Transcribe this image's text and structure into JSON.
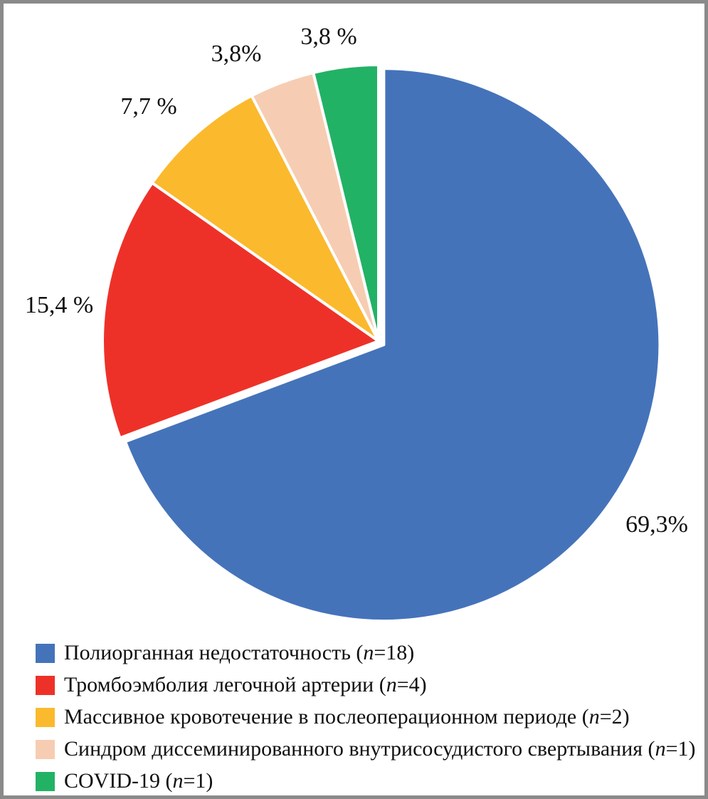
{
  "chart_data": {
    "type": "pie",
    "title": "",
    "units": "percent",
    "direction": "clockwise",
    "start_angle_deg": 0,
    "legend_position": "bottom-left",
    "grid": false,
    "slices": [
      {
        "label": "Полиорганная недостаточность",
        "n": 18,
        "value_pct": 69.3,
        "pct_label": "69,3%",
        "color": "#4573BA",
        "exploded": true
      },
      {
        "label": "Тромбоэмболия легочной артерии",
        "n": 4,
        "value_pct": 15.4,
        "pct_label": "15,4 %",
        "color": "#EE3128",
        "exploded": false
      },
      {
        "label": "Массивное кровотечение в послеоперационном периоде",
        "n": 2,
        "value_pct": 7.7,
        "pct_label": "7,7 %",
        "color": "#FBB92D",
        "exploded": false
      },
      {
        "label": "Синдром диссеминированного внутрисосудистого свертывания",
        "n": 1,
        "value_pct": 3.8,
        "pct_label": "3,8%",
        "color": "#F6CDB2",
        "exploded": false
      },
      {
        "label": "COVID-19",
        "n": 1,
        "value_pct": 3.8,
        "pct_label": "3,8 %",
        "color": "#22B265",
        "exploded": false
      }
    ]
  },
  "legend": {
    "items": [
      {
        "prefix": "Полиорганная недостаточность (",
        "n_symbol": "n",
        "suffix": "=18)"
      },
      {
        "prefix": "Тромбоэмболия легочной артерии (",
        "n_symbol": "n",
        "suffix": "=4)"
      },
      {
        "prefix": "Массивное кровотечение в послеоперационном периоде (",
        "n_symbol": "n",
        "suffix": "=2)"
      },
      {
        "prefix": "Синдром диссеминированного внутрисосудистого свертывания (",
        "n_symbol": "n",
        "suffix": "=1)"
      },
      {
        "prefix": "COVID-19 (",
        "n_symbol": "n",
        "suffix": "=1)"
      }
    ]
  },
  "colors": {
    "frame": "#8a8a8a",
    "slice_border": "#ffffff",
    "text": "#101010"
  }
}
